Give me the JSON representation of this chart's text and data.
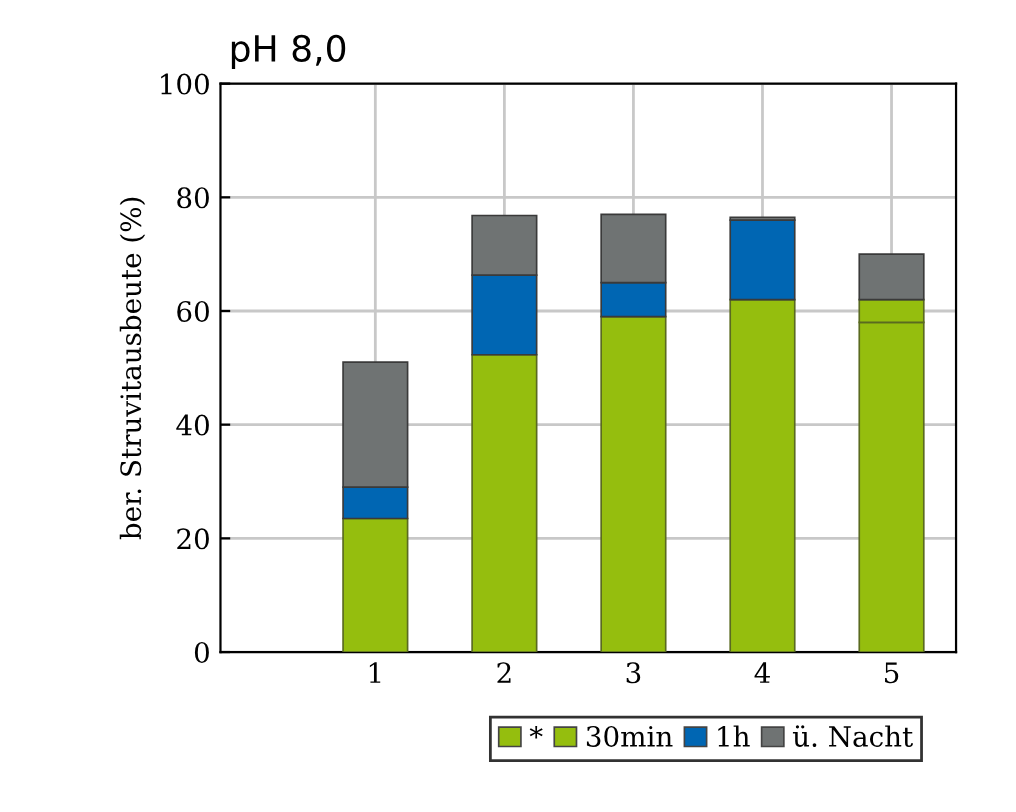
{
  "chart_data": {
    "type": "bar",
    "title": "pH 8,0",
    "ylabel": "ber. Struvitausbeute (%)",
    "stacked": true,
    "x": [
      1,
      2,
      3,
      4,
      5
    ],
    "series": [
      {
        "name": "*",
        "color": "#95be0e",
        "values": [
          null,
          null,
          null,
          null,
          58
        ]
      },
      {
        "name": "30min",
        "color": "#95be0e",
        "values": [
          23.5,
          52.3,
          59,
          62,
          4
        ]
      },
      {
        "name": "1h",
        "color": "#0066b3",
        "values": [
          5.5,
          14,
          6,
          14,
          null
        ]
      },
      {
        "name": "ü. Nacht",
        "color": "#6f7373",
        "values": [
          22,
          10.5,
          12,
          0.5,
          8
        ]
      }
    ],
    "xlim": [
      -0.2,
      5.5
    ],
    "xticks": [
      1,
      2,
      3,
      4,
      5
    ],
    "ylim": [
      0,
      100
    ],
    "yticks": [
      0,
      20,
      40,
      60,
      80,
      100
    ],
    "grid": true,
    "legend": "bottom"
  }
}
